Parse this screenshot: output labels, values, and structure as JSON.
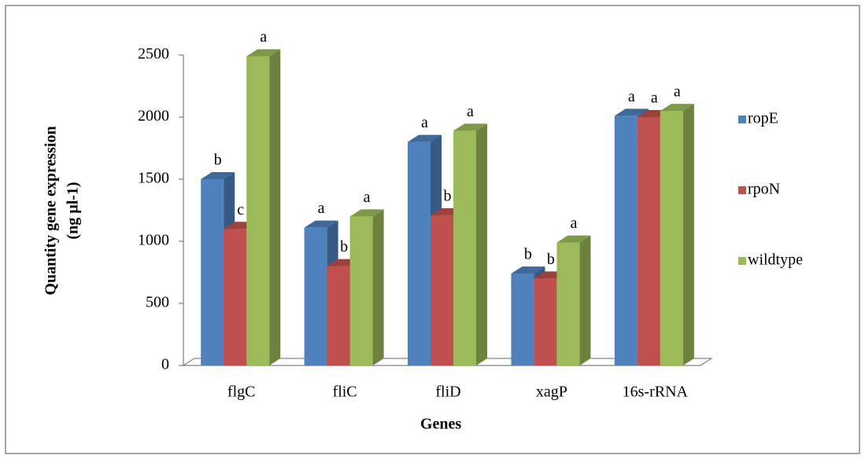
{
  "chart_data": {
    "type": "bar3d",
    "x_label": "Genes",
    "y_label": [
      "Quantity gene expression",
      "(ng µl-1)"
    ],
    "categories": [
      "flgC",
      "fliC",
      "fliD",
      "xagP",
      "16s-rRNA"
    ],
    "series": [
      {
        "name": "ropE",
        "color": "#4f81bd",
        "values": [
          1500,
          1110,
          1800,
          740,
          2010
        ],
        "letters": [
          "b",
          "a",
          "a",
          "b",
          "a"
        ]
      },
      {
        "name": "rpoN",
        "color": "#c0504d",
        "values": [
          1100,
          800,
          1210,
          700,
          2000
        ],
        "letters": [
          "c",
          "b",
          "b",
          "b",
          "a"
        ]
      },
      {
        "name": "wildtype",
        "color": "#9bbb59",
        "values": [
          2490,
          1200,
          1890,
          990,
          2050
        ],
        "letters": [
          "a",
          "a",
          "a",
          "a",
          "a"
        ]
      }
    ],
    "ylim": [
      0,
      2500
    ],
    "yticks": [
      0,
      500,
      1000,
      1500,
      2000,
      2500
    ],
    "legend": "right"
  }
}
